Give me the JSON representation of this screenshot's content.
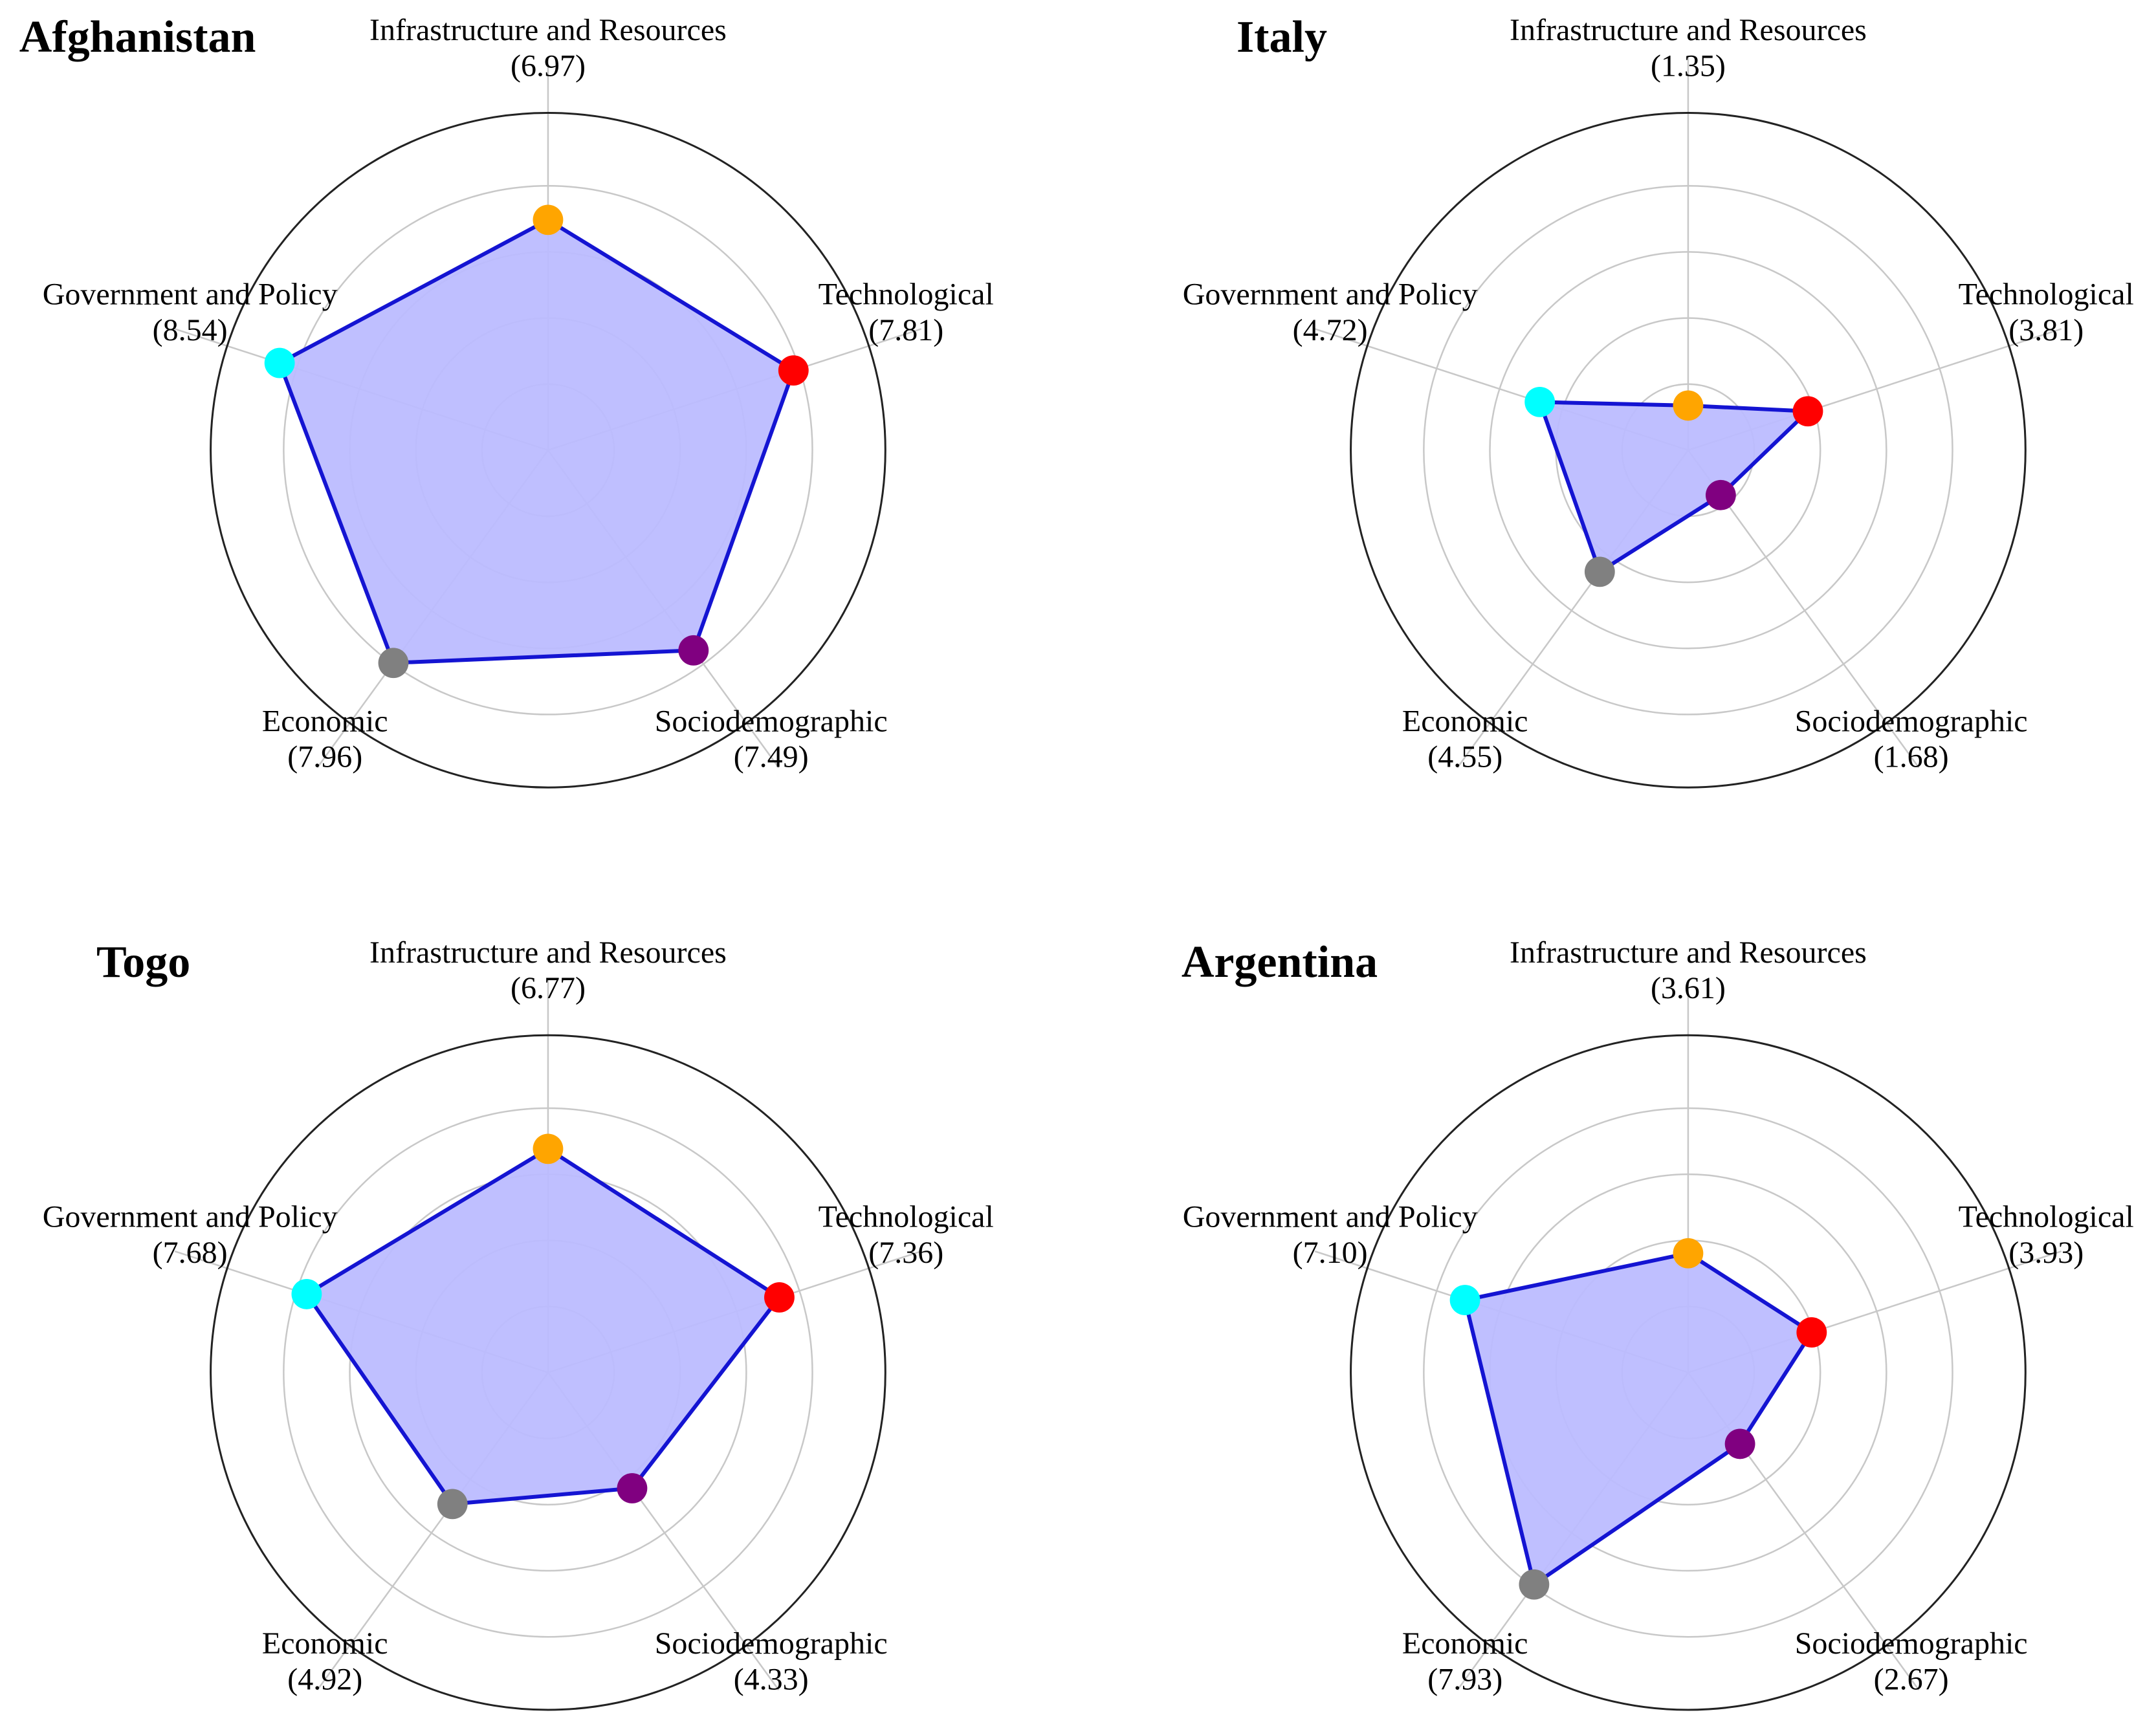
{
  "axes": [
    "Infrastructure and Resources",
    "Technological",
    "Sociodemographic",
    "Economic",
    "Government and Policy"
  ],
  "colors": {
    "Infrastructure and Resources": "#ffa500",
    "Technological": "#ff0000",
    "Sociodemographic": "#800080",
    "Economic": "#808080",
    "Government and Policy": "#00ffff",
    "fill": "#bcbcff",
    "line": "#1414d2",
    "grid": "#c8c8c8",
    "frame": "#222222"
  },
  "chart_data": [
    {
      "type": "radar",
      "title": "Afghanistan",
      "rlim": [
        0,
        10
      ],
      "grid_rings": [
        2,
        4,
        6,
        8
      ],
      "categories": [
        "Infrastructure and Resources",
        "Technological",
        "Sociodemographic",
        "Economic",
        "Government and Policy"
      ],
      "values": [
        6.97,
        7.81,
        7.49,
        7.96,
        8.54
      ],
      "value_labels": [
        "(6.97)",
        "(7.81)",
        "(7.49)",
        "(7.96)",
        "(8.54)"
      ]
    },
    {
      "type": "radar",
      "title": "Italy",
      "rlim": [
        0,
        10
      ],
      "grid_rings": [
        2,
        4,
        6,
        8
      ],
      "categories": [
        "Infrastructure and Resources",
        "Technological",
        "Sociodemographic",
        "Economic",
        "Government and Policy"
      ],
      "values": [
        1.35,
        3.81,
        1.68,
        4.55,
        4.72
      ],
      "value_labels": [
        "(1.35)",
        "(3.81)",
        "(1.68)",
        "(4.55)",
        "(4.72)"
      ]
    },
    {
      "type": "radar",
      "title": "Togo",
      "rlim": [
        0,
        10
      ],
      "grid_rings": [
        2,
        4,
        6,
        8
      ],
      "categories": [
        "Infrastructure and Resources",
        "Technological",
        "Sociodemographic",
        "Economic",
        "Government and Policy"
      ],
      "values": [
        6.77,
        7.36,
        4.33,
        4.92,
        7.68
      ],
      "value_labels": [
        "(6.77)",
        "(7.36)",
        "(4.33)",
        "(4.92)",
        "(7.68)"
      ]
    },
    {
      "type": "radar",
      "title": "Argentina",
      "rlim": [
        0,
        10
      ],
      "grid_rings": [
        2,
        4,
        6,
        8
      ],
      "categories": [
        "Infrastructure and Resources",
        "Technological",
        "Sociodemographic",
        "Economic",
        "Government and Policy"
      ],
      "values": [
        3.61,
        3.93,
        2.67,
        7.93,
        7.1
      ],
      "value_labels": [
        "(3.61)",
        "(3.93)",
        "(2.67)",
        "(7.93)",
        "(7.10)"
      ]
    }
  ]
}
